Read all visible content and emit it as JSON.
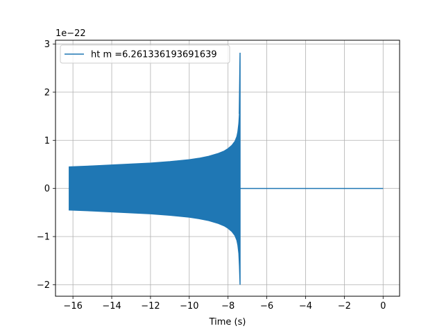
{
  "chart_data": {
    "type": "line",
    "title": "",
    "xlabel": "Time (s)",
    "ylabel": "",
    "y_scale_label": "1e−22",
    "xlim": [
      -16.9,
      0.85
    ],
    "ylim": [
      -2.24,
      3.08
    ],
    "xticks": [
      -16,
      -14,
      -12,
      -10,
      -8,
      -6,
      -4,
      -2,
      0
    ],
    "xtick_labels": [
      "−16",
      "−14",
      "−12",
      "−10",
      "−8",
      "−6",
      "−4",
      "−2",
      "0"
    ],
    "yticks": [
      -2,
      -1,
      0,
      1,
      2,
      3
    ],
    "ytick_labels": [
      "−2",
      "−1",
      "0",
      "1",
      "2",
      "3"
    ],
    "grid": true,
    "legend_position": "top-left",
    "series": [
      {
        "name": "ht m =6.261336193691639",
        "color": "#1f77b4",
        "envelope": {
          "t": [
            -16.2,
            -15.0,
            -14.0,
            -13.0,
            -12.0,
            -11.0,
            -10.0,
            -9.5,
            -9.0,
            -8.5,
            -8.2,
            -8.0,
            -7.8,
            -7.65,
            -7.55,
            -7.5,
            -7.45,
            -7.42,
            -7.4,
            -7.38
          ],
          "upper": [
            0.45,
            0.47,
            0.49,
            0.51,
            0.53,
            0.56,
            0.6,
            0.63,
            0.67,
            0.73,
            0.78,
            0.83,
            0.9,
            0.98,
            1.08,
            1.18,
            1.35,
            1.55,
            1.9,
            2.82
          ],
          "lower": [
            -0.45,
            -0.47,
            -0.49,
            -0.51,
            -0.53,
            -0.56,
            -0.6,
            -0.63,
            -0.67,
            -0.73,
            -0.78,
            -0.83,
            -0.9,
            -0.98,
            -1.08,
            -1.18,
            -1.35,
            -1.6,
            -1.85,
            -2.0
          ]
        },
        "ringdown_end": 0.0,
        "ringdown_value": 0.0
      }
    ]
  }
}
